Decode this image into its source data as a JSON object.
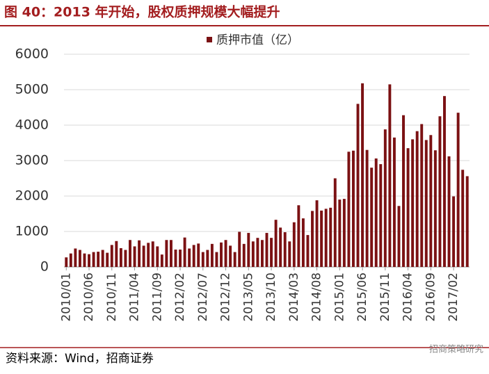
{
  "header": {
    "title": "图 40：2013 年开始，股权质押规模大幅提升"
  },
  "chart_data": {
    "type": "bar",
    "categories": [
      "2010/01",
      null,
      null,
      null,
      null,
      "2010/06",
      null,
      null,
      null,
      null,
      "2010/11",
      null,
      null,
      null,
      null,
      "2011/04",
      null,
      null,
      null,
      null,
      "2011/09",
      null,
      null,
      null,
      null,
      "2012/02",
      null,
      null,
      null,
      null,
      "2012/07",
      null,
      null,
      null,
      null,
      "2012/12",
      null,
      null,
      null,
      null,
      "2013/05",
      null,
      null,
      null,
      null,
      "2013/10",
      null,
      null,
      null,
      null,
      "2014/03",
      null,
      null,
      null,
      null,
      "2014/08",
      null,
      null,
      null,
      null,
      "2015/01",
      null,
      null,
      null,
      null,
      "2015/06",
      null,
      null,
      null,
      null,
      "2015/11",
      null,
      null,
      null,
      null,
      "2016/04",
      null,
      null,
      null,
      null,
      "2016/09",
      null,
      null,
      null,
      null,
      "2017/02",
      null,
      null,
      null
    ],
    "series": [
      {
        "name": "质押市值（亿）",
        "color": "#7b1113",
        "values": [
          270,
          380,
          520,
          480,
          380,
          360,
          420,
          430,
          480,
          400,
          620,
          730,
          530,
          480,
          760,
          580,
          750,
          600,
          680,
          720,
          580,
          350,
          760,
          760,
          490,
          490,
          830,
          520,
          620,
          660,
          420,
          480,
          650,
          420,
          690,
          760,
          600,
          420,
          990,
          650,
          960,
          720,
          820,
          760,
          960,
          820,
          1330,
          1110,
          980,
          720,
          1260,
          1740,
          1370,
          900,
          1580,
          1880,
          1590,
          1640,
          1670,
          2500,
          1900,
          1920,
          3250,
          3280,
          4600,
          5180,
          3300,
          2800,
          3060,
          2900,
          3880,
          5150,
          3650,
          1720,
          4280,
          3350,
          3600,
          3830,
          4030,
          3580,
          3720,
          3290,
          4250,
          4820,
          3120,
          1990,
          4350,
          2740,
          2560
        ]
      }
    ],
    "ylim": [
      0,
      6000
    ],
    "yticks": [
      0,
      1000,
      2000,
      3000,
      4000,
      5000,
      6000
    ],
    "grid": true
  },
  "footer": {
    "source": "资料来源：Wind，招商证券",
    "watermark": "招商策略研究"
  }
}
